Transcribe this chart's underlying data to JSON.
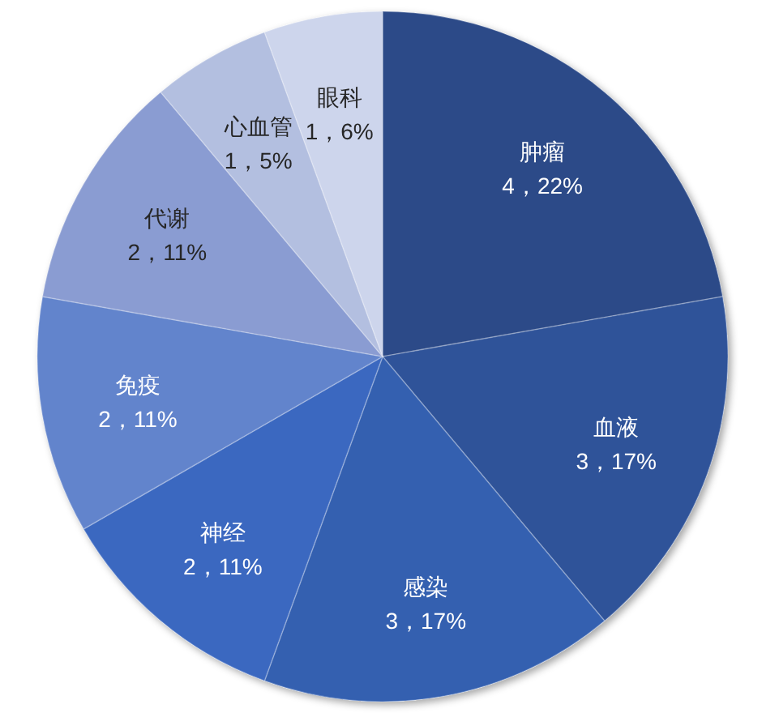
{
  "chart_data": {
    "type": "pie",
    "categories": [
      "肿瘤",
      "血液",
      "感染",
      "神经",
      "免疫",
      "代谢",
      "心血管",
      "眼科"
    ],
    "values": [
      4,
      3,
      3,
      2,
      2,
      2,
      1,
      1
    ],
    "colors": [
      "#2c4a88",
      "#2f5399",
      "#3460b0",
      "#3b68c0",
      "#6284cc",
      "#8a9cd2",
      "#b3bfe0",
      "#cdd5ec"
    ],
    "value_labels": [
      "4，22%",
      "3，17%",
      "3，17%",
      "2，11%",
      "2，11%",
      "2，11%",
      "1，5%",
      "1，6%"
    ]
  }
}
